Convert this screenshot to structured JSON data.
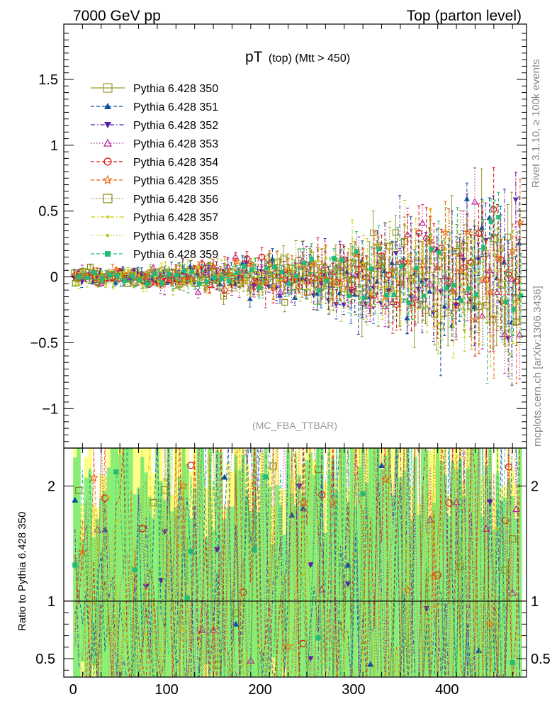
{
  "header": {
    "left": "7000 GeV pp",
    "right": "Top (parton level)"
  },
  "side_labels": {
    "rivet": "Rivet 3.1.10, ≥ 100k events",
    "mcplots": "mcplots.cern.ch [arXiv:1306.3436]"
  },
  "chart_data": [
    {
      "type": "scatter",
      "title_main": "pT",
      "title_sub": "(top) (Mtt > 450)",
      "watermark": "(MC_FBA_TTBAR)",
      "xlim": [
        -10,
        485
      ],
      "ylim": [
        -1.3,
        1.92
      ],
      "yticks": [
        -1,
        -0.5,
        0,
        0.5,
        1,
        1.5
      ],
      "ytick_labels": [
        "−1",
        "−0.5",
        "0",
        "0.5",
        "1",
        "1.5"
      ],
      "legend_position": "upper-left",
      "series": [
        {
          "name": "Pythia 6.428 350",
          "color": "#999933",
          "marker": "open-square",
          "dash": "solid"
        },
        {
          "name": "Pythia 6.428 351",
          "color": "#0b4fa3",
          "marker": "triangle-up",
          "dash": "dashed"
        },
        {
          "name": "Pythia 6.428 352",
          "color": "#5522aa",
          "marker": "triangle-down",
          "dash": "dashdot"
        },
        {
          "name": "Pythia 6.428 353",
          "color": "#bb2299",
          "marker": "open-triangle-up",
          "dash": "dotted"
        },
        {
          "name": "Pythia 6.428 354",
          "color": "#dd1111",
          "marker": "open-circle",
          "dash": "dashed"
        },
        {
          "name": "Pythia 6.428 355",
          "color": "#ee6611",
          "marker": "open-star",
          "dash": "dashed"
        },
        {
          "name": "Pythia 6.428 356",
          "color": "#888811",
          "marker": "open-square",
          "dash": "dotted"
        },
        {
          "name": "Pythia 6.428 357",
          "color": "#cccc11",
          "marker": "dot",
          "dash": "dashdot"
        },
        {
          "name": "Pythia 6.428 358",
          "color": "#aacc22",
          "marker": "dot",
          "dash": "dotted"
        },
        {
          "name": "Pythia 6.428 359",
          "color": "#22bb77",
          "marker": "filled-square",
          "dash": "dashed"
        }
      ],
      "x_bins": {
        "start": 2,
        "end": 478,
        "step": 4
      },
      "y_behaviour": "values scatter around 0 with spread growing from about ±0.03 at x=0 to about ±0.3 at x=480"
    },
    {
      "type": "scatter",
      "ylabel": "Ratio to Pythia 6.428 350",
      "xlim": [
        -10,
        485
      ],
      "ylim": [
        0.34,
        2.33
      ],
      "yticks": [
        0.5,
        1,
        2
      ],
      "ytick_labels": [
        "0.5",
        "1",
        "2"
      ],
      "xticks": [
        0,
        100,
        200,
        300,
        400
      ],
      "xtick_labels": [
        "0",
        "100",
        "200",
        "300",
        "400"
      ],
      "reference_line": 1,
      "band_colors": {
        "outer": "#ffff88",
        "inner": "#88ee77"
      }
    }
  ]
}
